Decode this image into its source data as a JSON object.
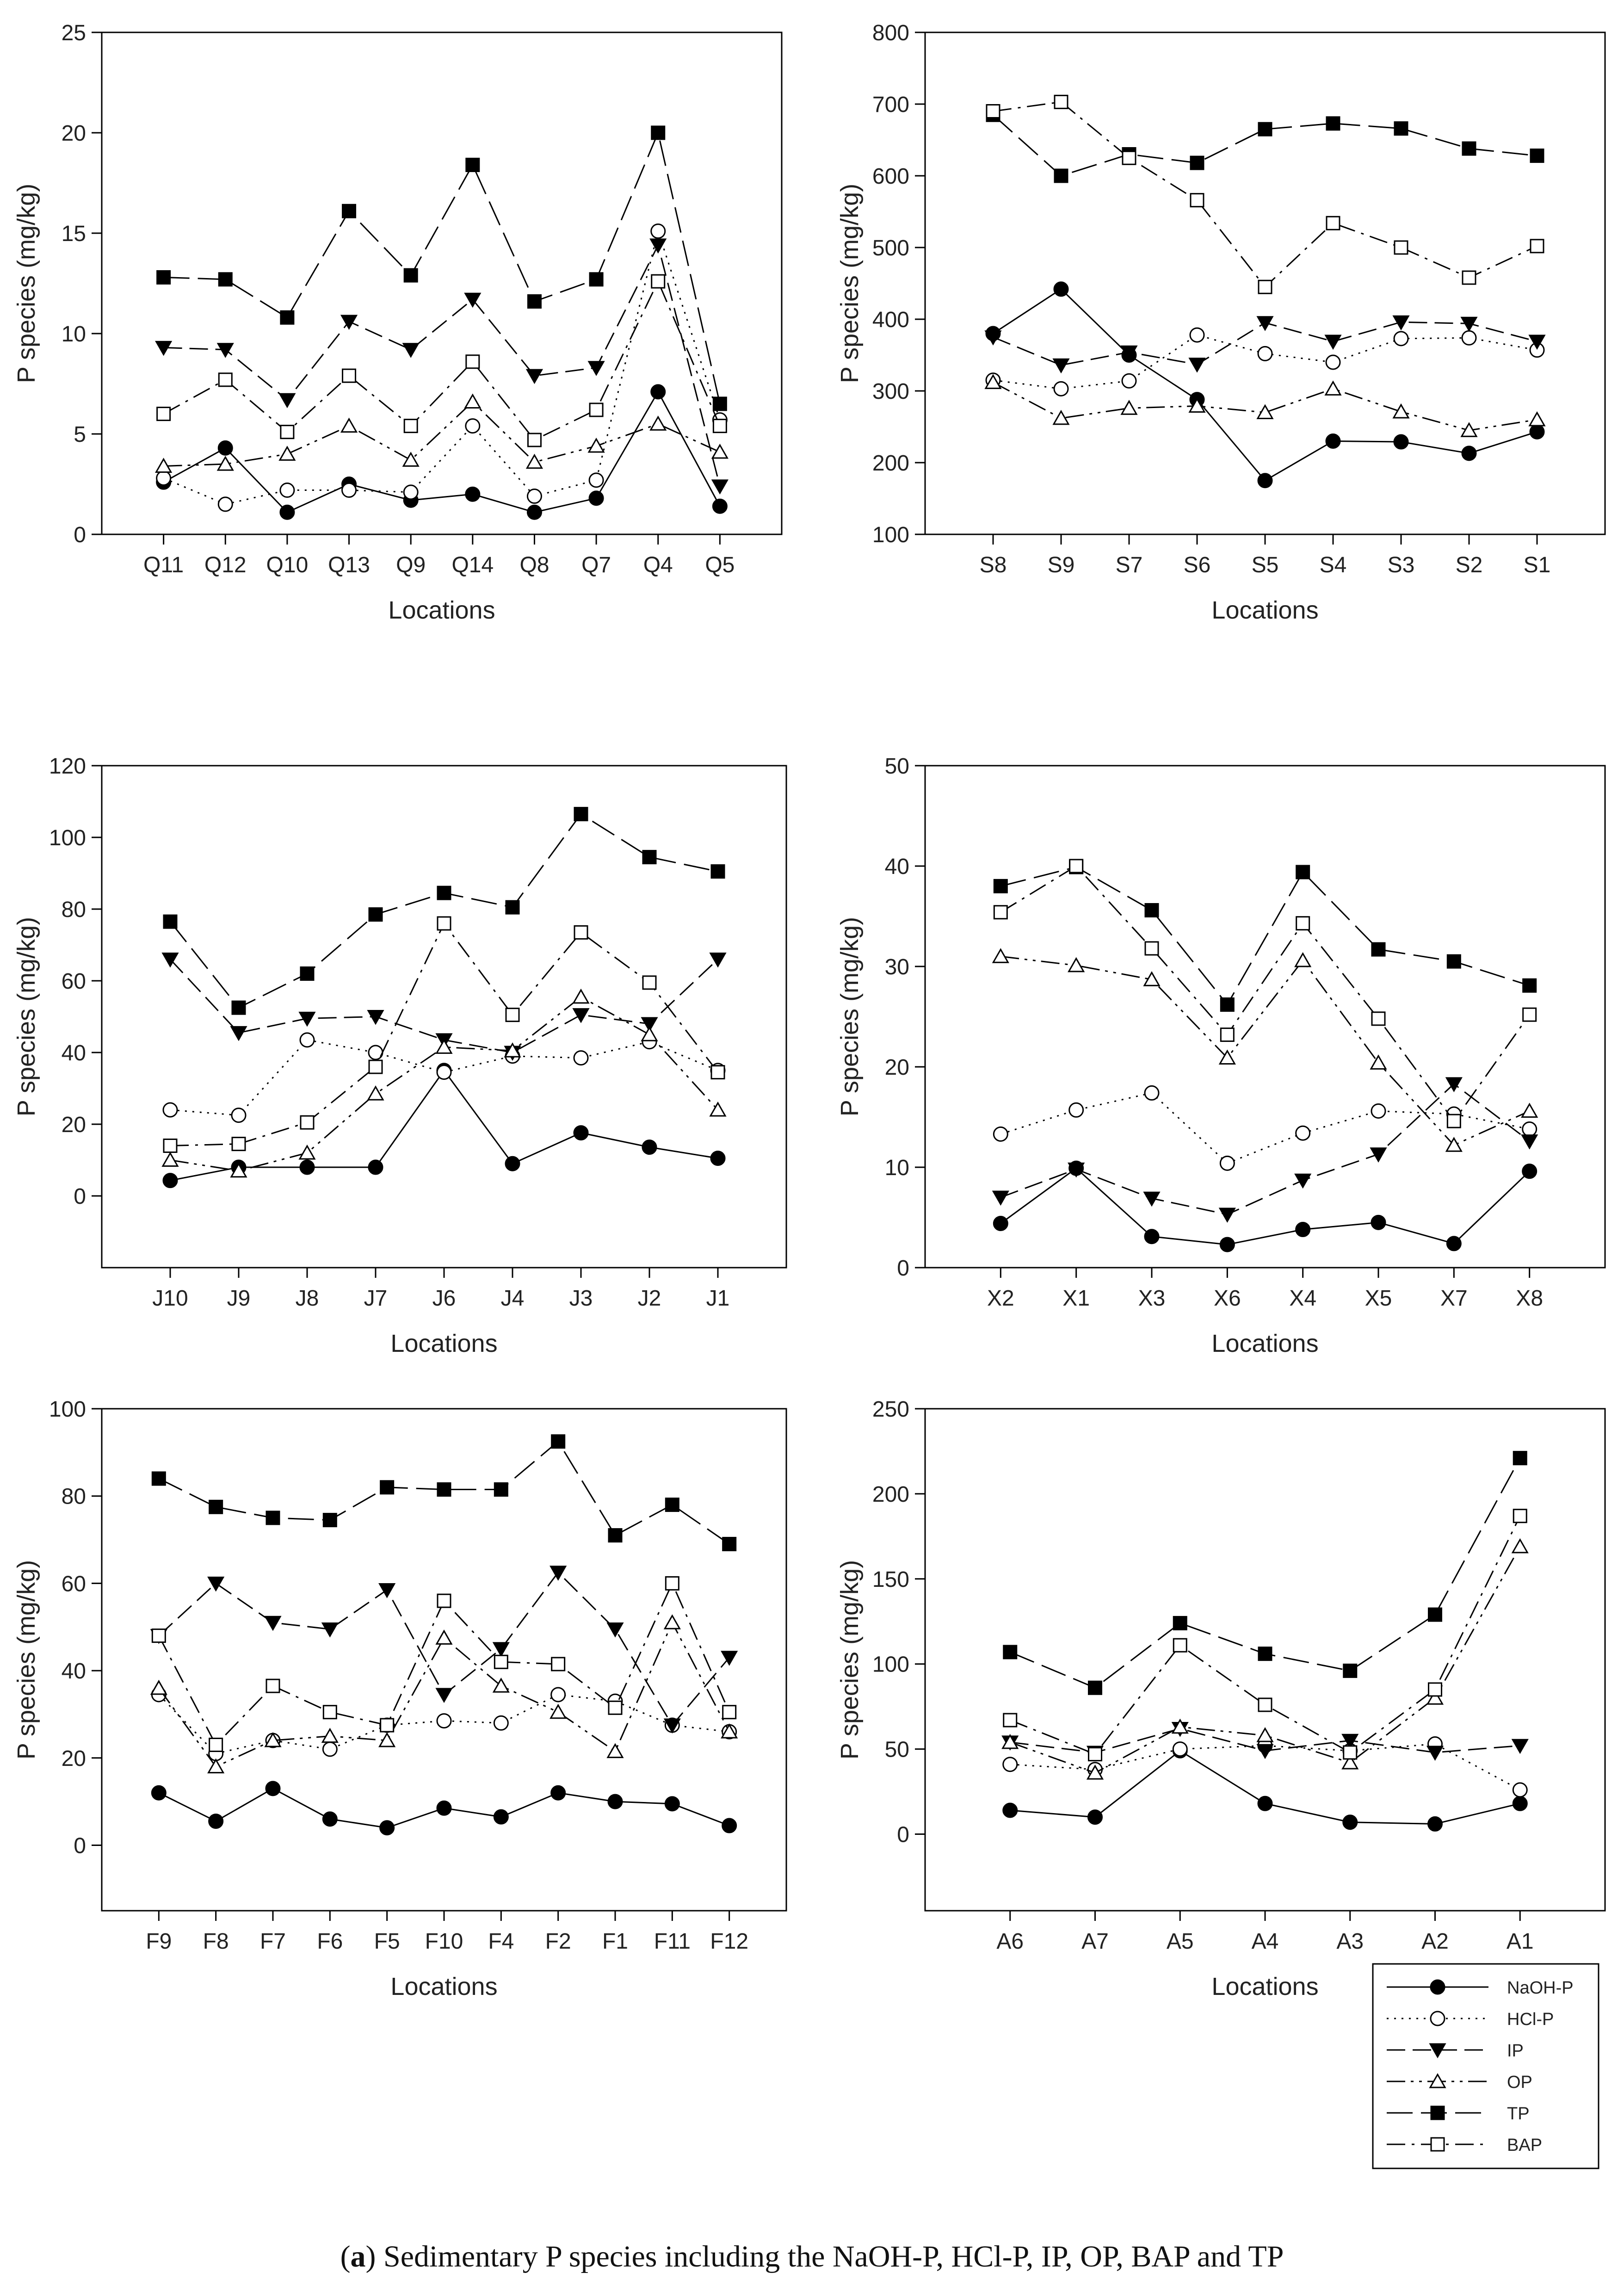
{
  "chart_data": [
    {
      "type": "line",
      "panel": "Q",
      "title": "",
      "xlabel": "Locations",
      "ylabel": "P species (mg/kg)",
      "ylim": [
        0,
        25
      ],
      "yticks": [
        0,
        5,
        10,
        15,
        20,
        25
      ],
      "categories": [
        "Q11",
        "Q12",
        "Q10",
        "Q13",
        "Q9",
        "Q14",
        "Q8",
        "Q7",
        "Q4",
        "Q5"
      ],
      "series": [
        {
          "name": "NaOH-P",
          "values": [
            2.6,
            4.3,
            1.1,
            2.5,
            1.7,
            2.0,
            1.1,
            1.8,
            7.1,
            1.4
          ]
        },
        {
          "name": "HCl-P",
          "values": [
            2.8,
            1.5,
            2.2,
            2.2,
            2.1,
            5.4,
            1.9,
            2.7,
            15.1,
            5.7
          ]
        },
        {
          "name": "IP",
          "values": [
            9.3,
            9.2,
            6.7,
            10.6,
            9.2,
            11.7,
            7.9,
            8.3,
            14.4,
            2.4
          ]
        },
        {
          "name": "OP",
          "values": [
            3.4,
            3.5,
            4.0,
            5.4,
            3.7,
            6.6,
            3.6,
            4.4,
            5.5,
            4.1
          ]
        },
        {
          "name": "TP",
          "values": [
            12.8,
            12.7,
            10.8,
            16.1,
            12.9,
            18.4,
            11.6,
            12.7,
            20.0,
            6.5
          ]
        },
        {
          "name": "BAP",
          "values": [
            6.0,
            7.7,
            5.1,
            7.9,
            5.4,
            8.6,
            4.7,
            6.2,
            12.6,
            5.4
          ]
        }
      ]
    },
    {
      "type": "line",
      "panel": "S",
      "title": "",
      "xlabel": "Locations",
      "ylabel": "P species (mg/kg)",
      "ylim": [
        100,
        800
      ],
      "yticks": [
        100,
        200,
        300,
        400,
        500,
        600,
        700,
        800
      ],
      "categories": [
        "S8",
        "S9",
        "S7",
        "S6",
        "S5",
        "S4",
        "S3",
        "S2",
        "S1"
      ],
      "series": [
        {
          "name": "NaOH-P",
          "values": [
            380,
            442,
            350,
            288,
            175,
            230,
            229,
            213,
            243
          ]
        },
        {
          "name": "HCl-P",
          "values": [
            315,
            303,
            314,
            378,
            352,
            340,
            373,
            374,
            357
          ]
        },
        {
          "name": "IP",
          "values": [
            375,
            336,
            354,
            337,
            395,
            369,
            396,
            394,
            369
          ]
        },
        {
          "name": "OP",
          "values": [
            312,
            262,
            276,
            279,
            270,
            303,
            271,
            245,
            260
          ]
        },
        {
          "name": "TP",
          "values": [
            685,
            600,
            630,
            618,
            665,
            673,
            666,
            638,
            628
          ]
        },
        {
          "name": "BAP",
          "values": [
            690,
            703,
            625,
            566,
            445,
            534,
            500,
            458,
            502
          ]
        }
      ]
    },
    {
      "type": "line",
      "panel": "J",
      "title": "",
      "xlabel": "Locations",
      "ylabel": "P species (mg/kg)",
      "ylim": [
        -20,
        120
      ],
      "yticks": [
        0,
        20,
        40,
        60,
        80,
        100,
        120
      ],
      "categories": [
        "J10",
        "J9",
        "J8",
        "J7",
        "J6",
        "J4",
        "J3",
        "J2",
        "J1"
      ],
      "series": [
        {
          "name": "NaOH-P",
          "values": [
            4.3,
            8.0,
            8.0,
            8.0,
            35.0,
            9.0,
            17.6,
            13.6,
            10.5
          ]
        },
        {
          "name": "HCl-P",
          "values": [
            24.0,
            22.5,
            43.5,
            40.0,
            34.5,
            39.0,
            38.5,
            43.0,
            35.0
          ]
        },
        {
          "name": "IP",
          "values": [
            66.0,
            45.5,
            49.5,
            50.0,
            43.5,
            40.0,
            50.5,
            48.0,
            66.0
          ]
        },
        {
          "name": "OP",
          "values": [
            10.0,
            7.0,
            12.0,
            28.5,
            41.5,
            40.5,
            55.5,
            45.0,
            24.0
          ]
        },
        {
          "name": "TP",
          "values": [
            76.5,
            52.5,
            62.0,
            78.5,
            84.5,
            80.5,
            106.5,
            94.5,
            90.5
          ]
        },
        {
          "name": "BAP",
          "values": [
            14.0,
            14.5,
            20.5,
            36.0,
            76.0,
            50.5,
            73.5,
            59.5,
            34.5
          ]
        }
      ]
    },
    {
      "type": "line",
      "panel": "X",
      "title": "",
      "xlabel": "Locations",
      "ylabel": "P species (mg/kg)",
      "ylim": [
        0,
        50
      ],
      "yticks": [
        0,
        10,
        20,
        30,
        40,
        50
      ],
      "categories": [
        "X2",
        "X1",
        "X3",
        "X6",
        "X4",
        "X5",
        "X7",
        "X8"
      ],
      "series": [
        {
          "name": "NaOH-P",
          "values": [
            4.4,
            9.9,
            3.1,
            2.3,
            3.8,
            4.5,
            2.4,
            9.6
          ]
        },
        {
          "name": "HCl-P",
          "values": [
            13.3,
            15.7,
            17.4,
            10.4,
            13.4,
            15.6,
            15.3,
            13.8
          ]
        },
        {
          "name": "IP",
          "values": [
            7.0,
            9.8,
            6.9,
            5.3,
            8.7,
            11.3,
            18.3,
            12.6
          ]
        },
        {
          "name": "OP",
          "values": [
            31.0,
            30.1,
            28.7,
            20.9,
            30.6,
            20.4,
            12.2,
            15.6
          ]
        },
        {
          "name": "TP",
          "values": [
            38.0,
            39.9,
            35.6,
            26.2,
            39.4,
            31.7,
            30.5,
            28.1
          ]
        },
        {
          "name": "BAP",
          "values": [
            35.4,
            40.0,
            31.8,
            23.2,
            34.3,
            24.8,
            14.6,
            25.2
          ]
        }
      ]
    },
    {
      "type": "line",
      "panel": "F",
      "title": "",
      "xlabel": "Locations",
      "ylabel": "P species (mg/kg)",
      "ylim": [
        -15,
        100
      ],
      "yticks": [
        0,
        20,
        40,
        60,
        80,
        100
      ],
      "categories": [
        "F9",
        "F8",
        "F7",
        "F6",
        "F5",
        "F10",
        "F4",
        "F2",
        "F1",
        "F11",
        "F12"
      ],
      "series": [
        {
          "name": "NaOH-P",
          "values": [
            12.0,
            5.5,
            13.0,
            6.0,
            4.0,
            8.5,
            6.5,
            12.0,
            10.0,
            9.5,
            4.5
          ]
        },
        {
          "name": "HCl-P",
          "values": [
            34.5,
            21.0,
            24.0,
            22.0,
            27.5,
            28.5,
            28.0,
            34.5,
            33.0,
            27.5,
            26.0
          ]
        },
        {
          "name": "IP",
          "values": [
            48.0,
            60.0,
            51.0,
            49.5,
            58.5,
            34.5,
            45.0,
            62.5,
            49.5,
            27.5,
            43.0
          ]
        },
        {
          "name": "OP",
          "values": [
            36.0,
            18.0,
            24.0,
            25.0,
            24.0,
            47.5,
            36.5,
            30.5,
            21.5,
            51.0,
            26.0
          ]
        },
        {
          "name": "TP",
          "values": [
            84.0,
            77.5,
            75.0,
            74.5,
            82.0,
            81.5,
            81.5,
            92.5,
            71.0,
            78.0,
            69.0
          ]
        },
        {
          "name": "BAP",
          "values": [
            48.0,
            23.0,
            36.5,
            30.5,
            27.5,
            56.0,
            42.0,
            41.5,
            31.5,
            60.0,
            30.5
          ]
        }
      ]
    },
    {
      "type": "line",
      "panel": "A",
      "title": "",
      "xlabel": "Locations",
      "ylabel": "P species (mg/kg)",
      "ylim": [
        -45,
        250
      ],
      "yticks": [
        0,
        50,
        100,
        150,
        200,
        250
      ],
      "categories": [
        "A6",
        "A7",
        "A5",
        "A4",
        "A3",
        "A2",
        "A1"
      ],
      "series": [
        {
          "name": "NaOH-P",
          "values": [
            14,
            10,
            49,
            18,
            7,
            6,
            18
          ]
        },
        {
          "name": "HCl-P",
          "values": [
            41,
            38,
            50,
            52,
            49,
            53,
            26
          ]
        },
        {
          "name": "IP",
          "values": [
            54,
            48,
            62,
            49,
            55,
            48,
            52
          ]
        },
        {
          "name": "OP",
          "values": [
            54,
            36,
            63,
            58,
            42,
            80,
            169
          ]
        },
        {
          "name": "TP",
          "values": [
            107,
            86,
            124,
            106,
            96,
            129,
            221
          ]
        },
        {
          "name": "BAP",
          "values": [
            67,
            47,
            111,
            76,
            48,
            85,
            187
          ]
        }
      ]
    }
  ],
  "legend": {
    "placement": "bottom-right",
    "entries": [
      "NaOH-P",
      "HCl-P",
      "IP",
      "OP",
      "TP",
      "BAP"
    ]
  },
  "caption": {
    "label": "a",
    "open": "(",
    "close": ")",
    "text": " Sedimentary P species including the NaOH-P, HCl-P, IP, OP, BAP and TP"
  }
}
